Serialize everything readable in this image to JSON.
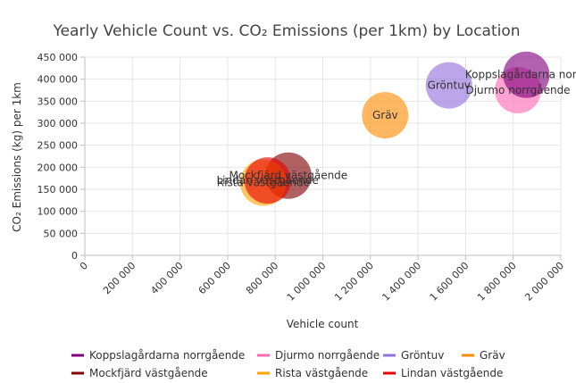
{
  "chart_data": {
    "type": "scatter",
    "title": "Yearly Vehicle Count vs. CO₂ Emissions (per 1km) by Location",
    "xlabel": "Vehicle count",
    "ylabel": "CO₂ Emissions (kg) per 1km",
    "xlim": [
      0,
      2000000
    ],
    "ylim": [
      0,
      450000
    ],
    "x_ticks": [
      "0",
      "200 000",
      "400 000",
      "600 000",
      "800 000",
      "1 000 000",
      "1 200 000",
      "1 400 000",
      "1 600 000",
      "1 800 000",
      "2 000 000"
    ],
    "y_ticks": [
      "0",
      "50 000",
      "100 000",
      "150 000",
      "200 000",
      "250 000",
      "300 000",
      "350 000",
      "400 000",
      "450 000"
    ],
    "grid": true,
    "legend_position": "bottom",
    "series": [
      {
        "name": "Koppslagårdarna norrgående",
        "label": "Koppslagårdarna norrg",
        "x": 1855000,
        "y": 410000,
        "color": "#800080"
      },
      {
        "name": "Djurmo norrgående",
        "label": "Djurmo norrgående",
        "x": 1820000,
        "y": 375000,
        "color": "#ff69b4"
      },
      {
        "name": "Gröntuv",
        "label": "Gröntuv",
        "x": 1530000,
        "y": 386000,
        "color": "#9370db"
      },
      {
        "name": "Gräv",
        "label": "Gräv",
        "x": 1262000,
        "y": 318000,
        "color": "#ff8c00"
      },
      {
        "name": "Mockfjärd västgående",
        "label": "Mockfjärd västgående",
        "x": 855000,
        "y": 181000,
        "color": "#800000"
      },
      {
        "name": "Rista västgående",
        "label": "Rista västgående",
        "x": 750000,
        "y": 165000,
        "color": "#ffa500"
      },
      {
        "name": "Lindan västgående",
        "label": "Lindan västgående",
        "x": 768000,
        "y": 170000,
        "color": "#e60000"
      }
    ]
  }
}
